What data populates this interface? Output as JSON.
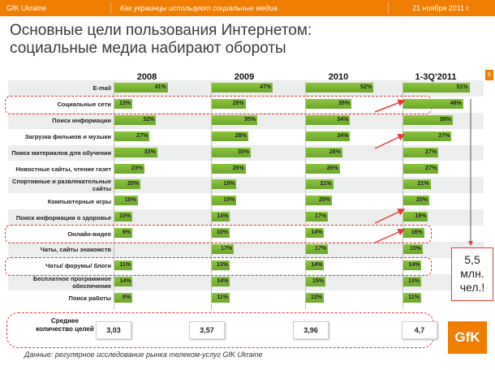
{
  "header": {
    "brand": "GfK Ukraine",
    "subtitle": "Как украинцы используют социальные медиа",
    "date": "21 ноября 2011 г."
  },
  "title": {
    "line1": "Основные цели пользования Интернетом:",
    "line2": "социальные медиа набирают обороты"
  },
  "page_number": "6",
  "chart_data": {
    "type": "bar",
    "periods": [
      "2008",
      "2009",
      "2010",
      "1-3Q'2011"
    ],
    "categories": [
      "E-mail",
      "Социальные сети",
      "Поиск информации",
      "Загрузка фильмов и музыки",
      "Поиск материалов для обучения",
      "Новостные сайты, чтение газет",
      "Спортивные и развлекательные сайты",
      "Компьютерные игры",
      "Поиск информации о здоровье",
      "Онлайн-видео",
      "Чаты, сайты знакомств",
      "Чаты/ форумы/ блоги",
      "Бесплатное программное обеспечение",
      "Поиск работы"
    ],
    "series": [
      {
        "name": "2008",
        "values": [
          41,
          13,
          32,
          27,
          33,
          23,
          20,
          18,
          10,
          6,
          null,
          11,
          14,
          8
        ]
      },
      {
        "name": "2009",
        "values": [
          47,
          26,
          35,
          28,
          30,
          26,
          19,
          19,
          14,
          10,
          17,
          13,
          14,
          11
        ]
      },
      {
        "name": "2010",
        "values": [
          52,
          35,
          34,
          34,
          28,
          26,
          21,
          20,
          17,
          14,
          17,
          14,
          15,
          12
        ]
      },
      {
        "name": "1-3Q'2011",
        "values": [
          51,
          46,
          38,
          37,
          27,
          27,
          21,
          20,
          19,
          16,
          15,
          14,
          13,
          11
        ]
      }
    ],
    "value_suffix": "%",
    "highlighted": [
      "Социальные сети",
      "Онлайн-видео",
      "Чаты/ форумы/ блоги"
    ]
  },
  "average": {
    "label": "Среднее количество целей",
    "values": [
      "3,03",
      "3,57",
      "3,96",
      "4,7"
    ]
  },
  "callout": {
    "line1": "5,5",
    "line2": "млн.",
    "line3": "чел.!"
  },
  "source": "Данные: регулярное исследование рынка телеком-услуг GfK Ukraine",
  "logo": "GfK",
  "colors": {
    "accent": "#ef7d00",
    "bar": "#78b833",
    "highlight": "#e53935"
  }
}
